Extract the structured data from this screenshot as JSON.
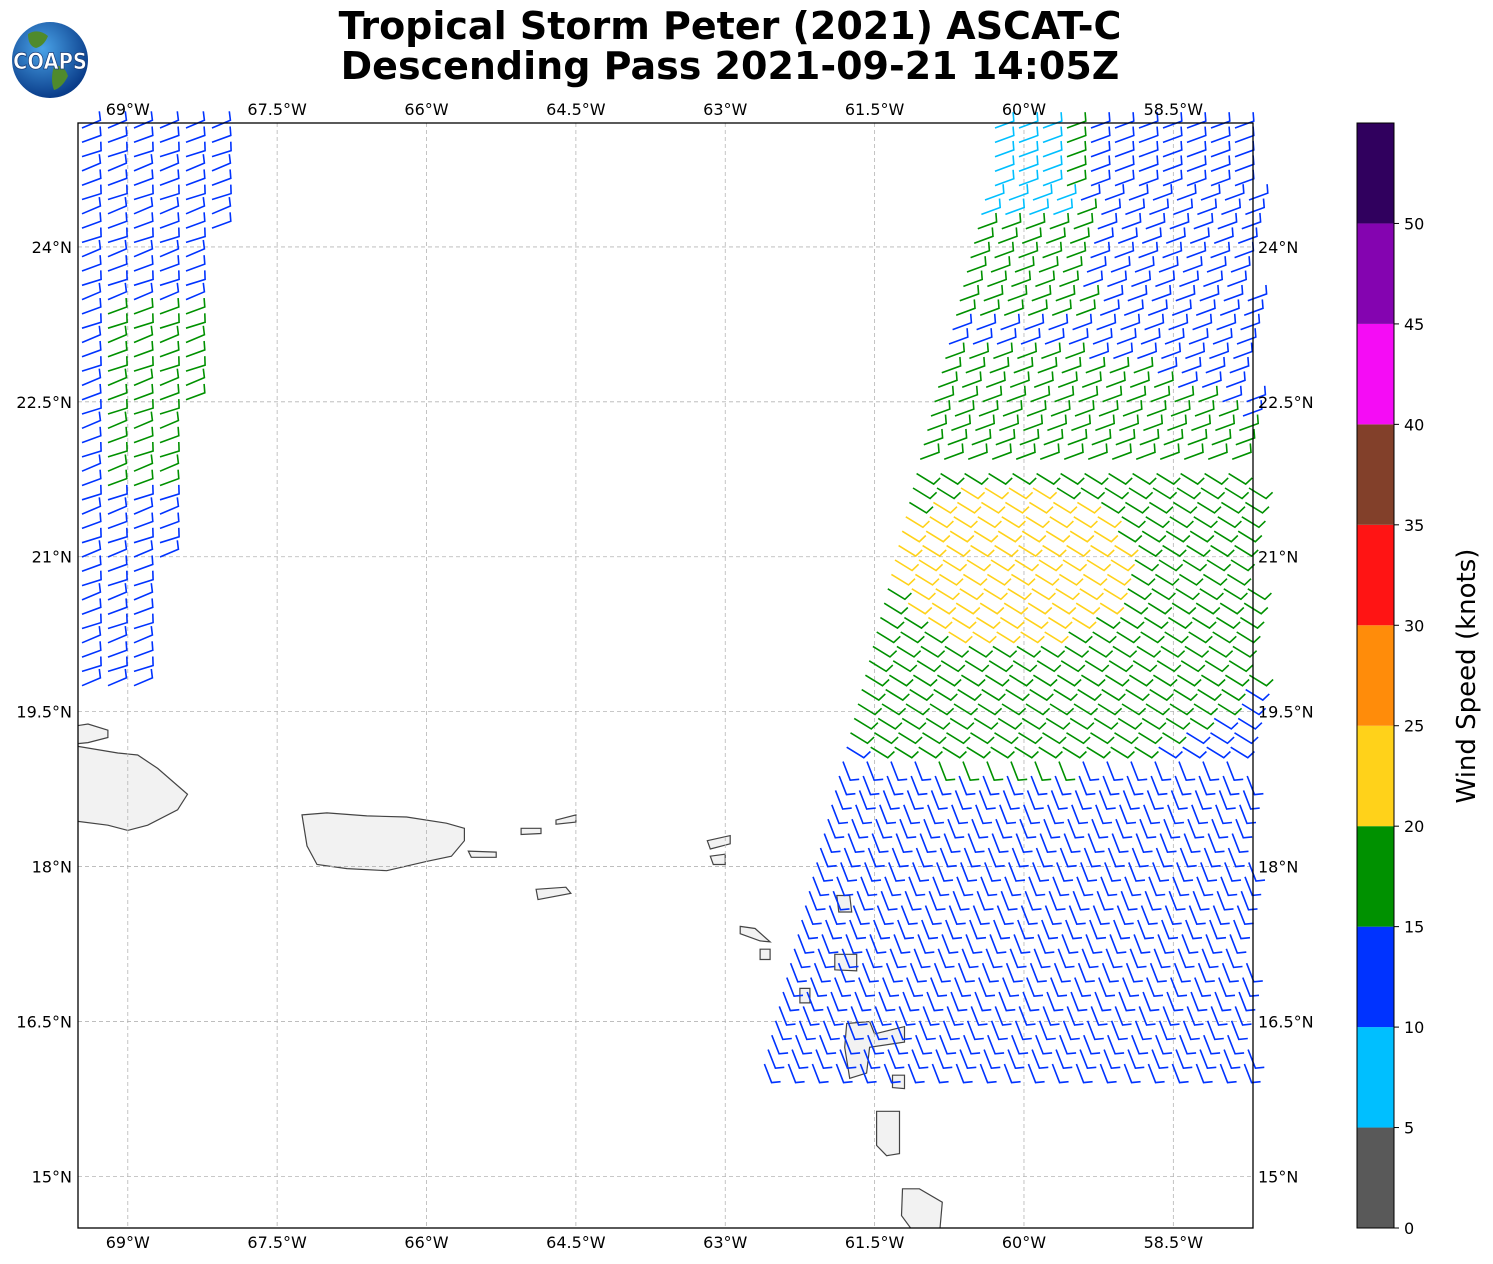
{
  "header": {
    "title_line1": "Tropical Storm Peter (2021) ASCAT-C",
    "title_line2": "Descending Pass 2021-09-21 14:05Z",
    "logo_text": "COAPS"
  },
  "map": {
    "lon_range": [
      -69.5,
      -57.7
    ],
    "lat_range": [
      14.5,
      25.2
    ],
    "lon_ticks": [
      -69,
      -67.5,
      -66,
      -64.5,
      -63,
      -61.5,
      -60,
      -58.5
    ],
    "lon_tick_labels": [
      "69°W",
      "67.5°W",
      "66°W",
      "64.5°W",
      "63°W",
      "61.5°W",
      "60°W",
      "58.5°W"
    ],
    "lat_ticks": [
      15,
      16.5,
      18,
      19.5,
      21,
      22.5,
      24
    ],
    "lat_tick_labels": [
      "15°N",
      "16.5°N",
      "18°N",
      "19.5°N",
      "21°N",
      "22.5°N",
      "24°N"
    ],
    "gridlines": true,
    "land_color": "#f2f2f2",
    "coast_color": "#444444",
    "features": [
      "Hispaniola",
      "Puerto Rico",
      "Virgin Islands",
      "Lesser Antilles"
    ]
  },
  "colorbar": {
    "label": "Wind Speed (knots)",
    "ticks": [
      "0",
      "5",
      "10",
      "15",
      "20",
      "25",
      "30",
      "35",
      "40",
      "45",
      "50"
    ],
    "bands": [
      {
        "from": 0,
        "to": 5,
        "color": "#595959"
      },
      {
        "from": 5,
        "to": 10,
        "color": "#00bfff"
      },
      {
        "from": 10,
        "to": 15,
        "color": "#0033ff"
      },
      {
        "from": 15,
        "to": 20,
        "color": "#009100"
      },
      {
        "from": 20,
        "to": 25,
        "color": "#ffd21a"
      },
      {
        "from": 25,
        "to": 30,
        "color": "#ff8c0a"
      },
      {
        "from": 30,
        "to": 35,
        "color": "#ff1414"
      },
      {
        "from": 35,
        "to": 40,
        "color": "#82402a"
      },
      {
        "from": 40,
        "to": 45,
        "color": "#f50cf5"
      },
      {
        "from": 45,
        "to": 50,
        "color": "#8404b0"
      },
      {
        "from": 50,
        "to": 55,
        "color": "#30005e"
      }
    ]
  }
}
